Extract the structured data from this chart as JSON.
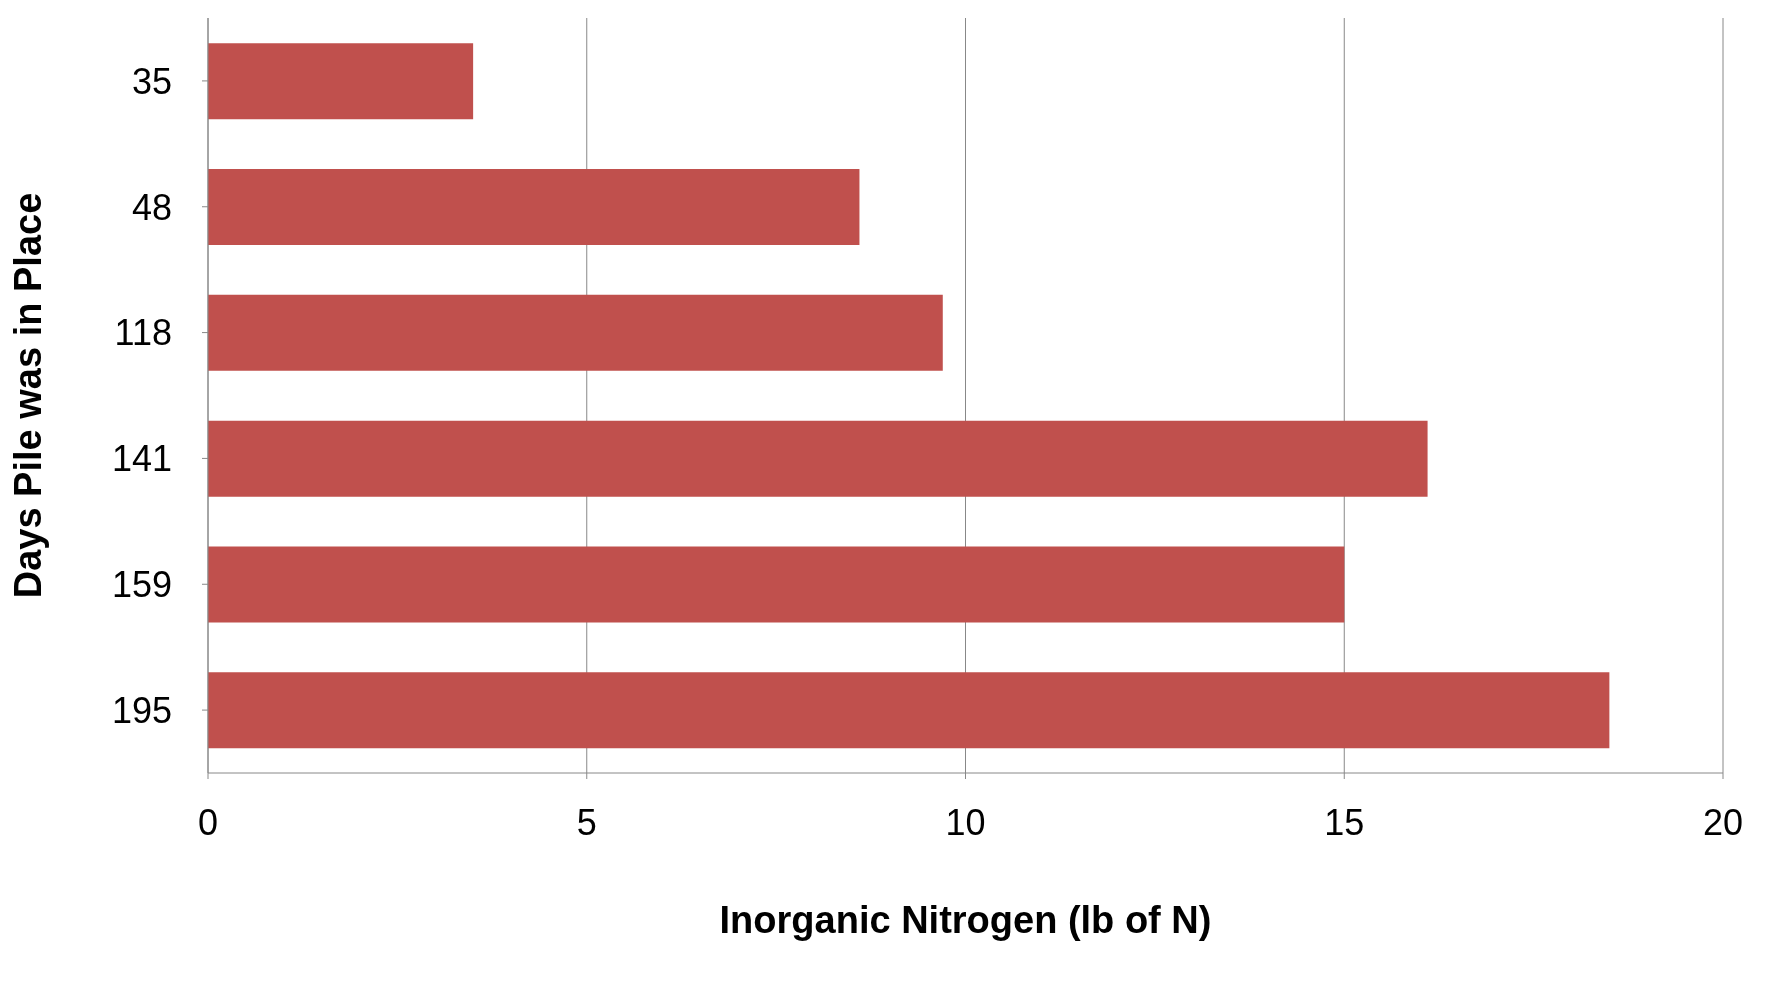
{
  "chart_data": {
    "type": "bar",
    "orientation": "horizontal",
    "xlabel": "Inorganic Nitrogen (lb of N)",
    "ylabel": "Days Pile was in Place",
    "categories": [
      "35",
      "48",
      "118",
      "141",
      "159",
      "195"
    ],
    "values": [
      3.5,
      8.6,
      9.7,
      16.1,
      15.0,
      18.5
    ],
    "color": "#c0504d",
    "xlim": [
      0,
      20
    ],
    "xticks": [
      0,
      5,
      10,
      15,
      20
    ],
    "grid": "x"
  }
}
